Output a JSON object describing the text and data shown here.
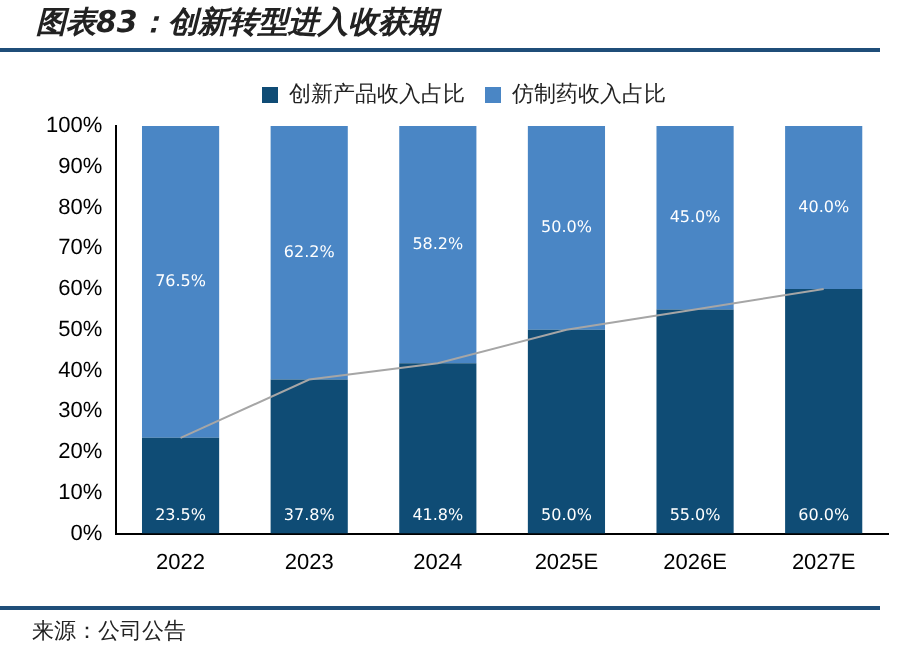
{
  "chart_data": {
    "type": "bar",
    "title": "图表83：创新转型进入收获期",
    "stacked": true,
    "legend": "top",
    "categories": [
      "2022",
      "2023",
      "2024",
      "2025E",
      "2026E",
      "2027E"
    ],
    "series": [
      {
        "name": "创新产品收入占比",
        "color": "#0f4c75",
        "values": [
          23.5,
          37.8,
          41.8,
          50.0,
          55.0,
          60.0
        ],
        "value_labels": [
          "23.5%",
          "37.8%",
          "41.8%",
          "50.0%",
          "55.0%",
          "60.0%"
        ]
      },
      {
        "name": "仿制药收入占比",
        "color": "#4a86c5",
        "values": [
          76.5,
          62.2,
          58.2,
          50.0,
          45.0,
          40.0
        ],
        "value_labels": [
          "76.5%",
          "62.2%",
          "58.2%",
          "50.0%",
          "45.0%",
          "40.0%"
        ]
      },
      {
        "type": "line",
        "color": "#a6a6a6",
        "values": [
          23.5,
          37.8,
          41.8,
          50.0,
          55.0,
          60.0
        ]
      }
    ],
    "ylim": [
      0,
      100
    ],
    "yticks": [
      {
        "value": 0,
        "label": "0%"
      },
      {
        "value": 10,
        "label": "10%"
      },
      {
        "value": 20,
        "label": "20%"
      },
      {
        "value": 30,
        "label": "30%"
      },
      {
        "value": 40,
        "label": "40%"
      },
      {
        "value": 50,
        "label": "50%"
      },
      {
        "value": 60,
        "label": "60%"
      },
      {
        "value": 70,
        "label": "70%"
      },
      {
        "value": 80,
        "label": "80%"
      },
      {
        "value": 90,
        "label": "90%"
      },
      {
        "value": 100,
        "label": "100%"
      }
    ],
    "annotations": [
      "来源：公司公告"
    ]
  }
}
